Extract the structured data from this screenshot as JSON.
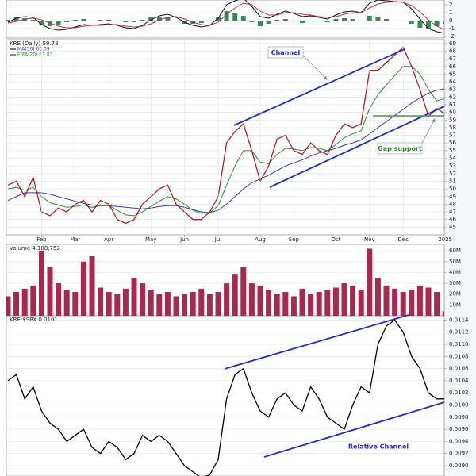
{
  "chart_data": [
    {
      "type": "macd",
      "ylim": [
        -2.2,
        2.6
      ],
      "yticks": [
        2,
        1,
        0,
        -1,
        -2
      ],
      "grid": true,
      "series": [
        {
          "kind": "bar",
          "color": "#3a8a5a",
          "values": [
            0.1,
            0.4,
            0.3,
            0.1,
            -0.6,
            -0.7,
            -0.5,
            -0.2,
            0.1,
            0.2,
            0,
            0.1,
            0.1,
            -0.1,
            -0.2,
            -0.2,
            0.1,
            0.5,
            0.5,
            0.4,
            -0.1,
            -0.4,
            -0.4,
            -0.3,
            0,
            0.5,
            1.2,
            0.9,
            0.6,
            -0.2,
            -0.7,
            -0.4,
            0.1,
            0.2,
            -0.1,
            -0.3,
            -0.1,
            -0.1,
            -0.2,
            0.2,
            0.3,
            0.2,
            0,
            0.6,
            0.5,
            0.2,
            0,
            0,
            -0.4,
            -0.9,
            -1.1,
            -0.7,
            -0.4
          ]
        },
        {
          "kind": "line",
          "color": "#111111",
          "values": [
            -0.2,
            0.3,
            0.5,
            0.4,
            -0.5,
            -1,
            -1.2,
            -1.1,
            -0.8,
            -0.5,
            -0.6,
            -0.5,
            -0.4,
            -0.6,
            -0.9,
            -1,
            -0.6,
            0.1,
            0.6,
            0.8,
            0.4,
            -0.2,
            -0.6,
            -0.8,
            -0.6,
            0.3,
            2,
            2.5,
            2.8,
            1.8,
            0.5,
            0.3,
            0.8,
            1.2,
            0.9,
            0.5,
            0.6,
            0.4,
            0.2,
            0.7,
            1.1,
            1.2,
            1,
            2.2,
            2.6,
            2.5,
            2.4,
            2.3,
            1.5,
            0.2,
            -1,
            -1.4,
            -1.6
          ]
        },
        {
          "kind": "line",
          "color": "#c0304a",
          "values": [
            -0.3,
            -0.1,
            0.2,
            0.3,
            0.1,
            -0.3,
            -0.7,
            -0.9,
            -0.9,
            -0.7,
            -0.6,
            -0.6,
            -0.5,
            -0.5,
            -0.7,
            -0.8,
            -0.7,
            -0.4,
            0.1,
            0.4,
            0.5,
            0.2,
            -0.2,
            -0.5,
            -0.6,
            -0.2,
            0.8,
            1.6,
            2.2,
            2,
            1.2,
            0.7,
            0.7,
            1,
            1,
            0.8,
            0.7,
            0.5,
            0.4,
            0.5,
            0.8,
            1,
            1,
            1.6,
            2.1,
            2.3,
            2.4,
            2.3,
            1.9,
            1.1,
            0.1,
            -0.7,
            -1.2
          ]
        }
      ]
    },
    {
      "type": "line",
      "title": "KRE (Daily) 59.78",
      "categories": [
        null,
        null,
        null,
        null,
        "Feb",
        null,
        null,
        null,
        "Mar",
        null,
        null,
        null,
        "Apr",
        null,
        null,
        null,
        null,
        "May",
        null,
        null,
        null,
        "Jun",
        null,
        null,
        null,
        "Jul",
        null,
        null,
        null,
        null,
        "Aug",
        null,
        null,
        null,
        "Sep",
        null,
        null,
        null,
        null,
        "Oct",
        null,
        null,
        null,
        "Nov",
        null,
        null,
        null,
        "Dec",
        null,
        null,
        null,
        null,
        "2025"
      ],
      "ylim": [
        44,
        69.5
      ],
      "yticks": [
        45,
        46,
        47,
        48,
        49,
        50,
        51,
        52,
        53,
        54,
        55,
        56,
        57,
        58,
        59,
        60,
        61,
        62,
        63,
        64,
        65,
        66,
        67,
        68,
        69
      ],
      "grid": true,
      "series": [
        {
          "name": "MA(50) 63.09",
          "color": "#3a3aa8",
          "values": [
            48.5,
            49,
            49.5,
            49.5,
            49.5,
            49.3,
            49,
            48.7,
            48.4,
            48.1,
            47.9,
            47.8,
            47.8,
            47.7,
            47.6,
            47.5,
            47.4,
            47.5,
            47.7,
            47.8,
            47.8,
            47.6,
            47.3,
            47.0,
            46.9,
            47.2,
            48,
            49,
            50,
            50.8,
            51.3,
            51.8,
            52.4,
            53,
            53.4,
            53.8,
            54.3,
            54.7,
            55,
            55.3,
            55.7,
            56,
            56.4,
            57.2,
            58,
            58.8,
            59.6,
            60.4,
            61.2,
            61.9,
            62.5,
            62.9,
            63.09
          ]
        },
        {
          "name": "EMA(20) 61.83",
          "color": "#2e8b2e",
          "values": [
            50,
            50.2,
            49.8,
            50.2,
            49,
            48.2,
            47.9,
            47.6,
            47.7,
            47.9,
            47.6,
            47.8,
            47.8,
            47.2,
            46.6,
            46.5,
            47,
            47.7,
            48.4,
            49,
            48.7,
            48,
            47.2,
            46.8,
            46.9,
            47.8,
            50.5,
            53,
            55,
            55,
            53.5,
            53.3,
            54.5,
            55.3,
            55.2,
            55,
            55.4,
            55.3,
            55,
            55.8,
            56.7,
            57.2,
            57.6,
            60.5,
            62.3,
            63.6,
            64.8,
            66,
            66,
            65,
            63,
            61.5,
            61.83
          ]
        },
        {
          "color": "#b0202c",
          "values": [
            50.5,
            51,
            49,
            51.5,
            47,
            46.5,
            47.5,
            47,
            48,
            48.5,
            47,
            48.5,
            48,
            46,
            45.5,
            46,
            48,
            49,
            50,
            50.5,
            48,
            47,
            46,
            46,
            47,
            49,
            56,
            57.5,
            58.5,
            55,
            51,
            53,
            56.5,
            57,
            55,
            54.5,
            56,
            55,
            54.5,
            57,
            58.5,
            58,
            58.5,
            65.5,
            65.5,
            66.5,
            67.5,
            68.5,
            66,
            63,
            59.5,
            60.5,
            59.78
          ]
        }
      ],
      "annotations": [
        "Channel",
        "Gap support"
      ]
    },
    {
      "type": "bar",
      "title": "Volume 4,108,752",
      "ylim": [
        0,
        66000000
      ],
      "color": "#a8284e",
      "grid": true,
      "yticks": [
        {
          "value": 10000000,
          "label": "10M"
        },
        {
          "value": 20000000,
          "label": "20M"
        },
        {
          "value": 30000000,
          "label": "30M"
        },
        {
          "value": 40000000,
          "label": "40M"
        },
        {
          "value": 50000000,
          "label": "50M"
        },
        {
          "value": 60000000,
          "label": "60M"
        }
      ],
      "values": [
        18000000,
        22000000,
        25000000,
        28000000,
        60000000,
        45000000,
        30000000,
        24000000,
        22000000,
        50000000,
        55000000,
        26000000,
        22000000,
        20000000,
        25000000,
        35000000,
        30000000,
        24000000,
        20000000,
        22000000,
        18000000,
        20000000,
        22000000,
        25000000,
        20000000,
        22000000,
        30000000,
        38000000,
        45000000,
        30000000,
        28000000,
        24000000,
        20000000,
        22000000,
        18000000,
        25000000,
        20000000,
        22000000,
        24000000,
        26000000,
        30000000,
        28000000,
        24000000,
        62000000,
        35000000,
        28000000,
        25000000,
        22000000,
        24000000,
        28000000,
        26000000,
        22000000,
        4108752
      ]
    },
    {
      "type": "line",
      "title": "KRE:$SPX 0.0101",
      "ylim": [
        0.00883,
        0.01147
      ],
      "color": "#000000",
      "grid": true,
      "yticks": [
        {
          "value": 0.009,
          "label": "0.0090"
        },
        {
          "value": 0.0092,
          "label": "0.0092"
        },
        {
          "value": 0.0094,
          "label": "0.0094"
        },
        {
          "value": 0.0096,
          "label": "0.0096"
        },
        {
          "value": 0.0098,
          "label": "0.0098"
        },
        {
          "value": 0.01,
          "label": "0.0100"
        },
        {
          "value": 0.0102,
          "label": "0.0102"
        },
        {
          "value": 0.0104,
          "label": "0.0104"
        },
        {
          "value": 0.0106,
          "label": "0.0106"
        },
        {
          "value": 0.0108,
          "label": "0.0108"
        },
        {
          "value": 0.011,
          "label": "0.0110"
        },
        {
          "value": 0.0112,
          "label": "0.0112"
        },
        {
          "value": 0.0114,
          "label": "0.0114"
        }
      ],
      "series": [
        {
          "color": "#000000",
          "values": [
            0.0104,
            0.0105,
            0.0101,
            0.0103,
            0.0099,
            0.0097,
            0.0096,
            0.0094,
            0.0095,
            0.0096,
            0.0093,
            0.0092,
            0.0094,
            0.0093,
            0.0091,
            0.0092,
            0.0095,
            0.0094,
            0.0095,
            0.0094,
            0.0092,
            0.009,
            0.0089,
            0.0088,
            0.00885,
            0.0091,
            0.0101,
            0.0105,
            0.0106,
            0.0102,
            0.0099,
            0.0098,
            0.0101,
            0.0102,
            0.01,
            0.0099,
            0.0103,
            0.0101,
            0.0098,
            0.0097,
            0.0096,
            0.01,
            0.0103,
            0.0102,
            0.011,
            0.0113,
            0.0114,
            0.0112,
            0.0108,
            0.0106,
            0.0102,
            0.0101,
            0.0101
          ]
        }
      ],
      "annotations": [
        "Relative Channel"
      ]
    }
  ]
}
